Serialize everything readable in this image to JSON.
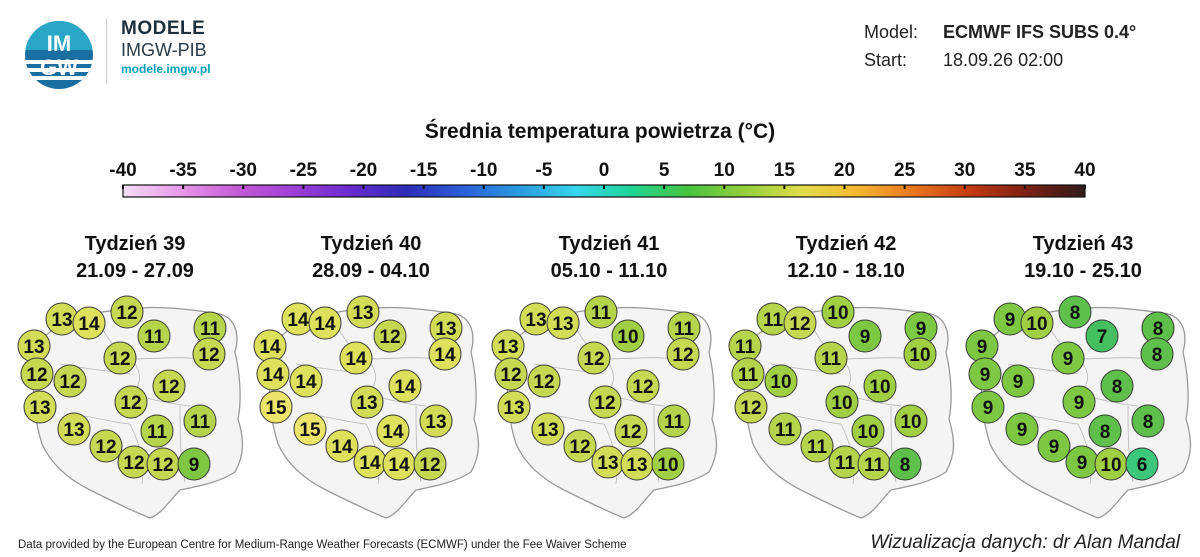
{
  "header": {
    "logo_text_top": "IM",
    "logo_text_bottom": "GW",
    "brand_title": "MODELE",
    "brand_sub": "IMGW-PIB",
    "brand_url": "modele.imgw.pl"
  },
  "model_info": {
    "model_label": "Model:",
    "model_value": "ECMWF IFS SUBS 0.4°",
    "start_label": "Start:",
    "start_value": "18.09.26 02:00"
  },
  "title": "Średnia temperatura powietrza (°C)",
  "scale": {
    "ticks": [
      "-40",
      "-35",
      "-30",
      "-25",
      "-20",
      "-15",
      "-10",
      "-5",
      "0",
      "5",
      "10",
      "15",
      "20",
      "25",
      "30",
      "35",
      "40"
    ],
    "colors": [
      "#f5ddf5",
      "#e79ae9",
      "#c65ad6",
      "#9f3fd6",
      "#6a2bcf",
      "#2d2bb8",
      "#2c5ed9",
      "#2a9be0",
      "#36d6ee",
      "#1fd493",
      "#48c43e",
      "#94cf3d",
      "#e0dd49",
      "#f5b62f",
      "#e8731e",
      "#c23a12",
      "#7a1f15",
      "#2f1b1b"
    ]
  },
  "weeks": [
    {
      "title": "Tydzień 39",
      "dates": "21.09 - 27.09",
      "values": [
        13,
        13,
        14,
        12,
        11,
        11,
        12,
        12,
        12,
        12,
        12,
        12,
        13,
        11,
        11,
        13,
        12,
        12,
        12,
        9
      ]
    },
    {
      "title": "Tydzień 40",
      "dates": "28.09 - 04.10",
      "values": [
        14,
        14,
        14,
        13,
        12,
        13,
        14,
        14,
        14,
        14,
        14,
        13,
        15,
        14,
        13,
        15,
        14,
        14,
        14,
        12
      ]
    },
    {
      "title": "Tydzień 41",
      "dates": "05.10 - 11.10",
      "values": [
        13,
        13,
        13,
        11,
        10,
        11,
        12,
        12,
        12,
        12,
        12,
        12,
        13,
        12,
        11,
        13,
        12,
        13,
        13,
        10
      ]
    },
    {
      "title": "Tydzień 42",
      "dates": "12.10 - 18.10",
      "values": [
        11,
        11,
        12,
        10,
        9,
        9,
        10,
        11,
        11,
        10,
        10,
        10,
        12,
        10,
        10,
        11,
        11,
        11,
        11,
        8
      ]
    },
    {
      "title": "Tydzień 43",
      "dates": "19.10 - 25.10",
      "values": [
        9,
        9,
        10,
        8,
        7,
        8,
        8,
        9,
        9,
        9,
        8,
        9,
        9,
        8,
        8,
        9,
        9,
        9,
        10,
        6
      ]
    }
  ],
  "footer": {
    "credit": "Data provided by the European Centre for Medium-Range Weather Forecasts (ECMWF) under the Fee Waiver Scheme",
    "author": "Wizualizacja danych: dr Alan Mandal"
  }
}
